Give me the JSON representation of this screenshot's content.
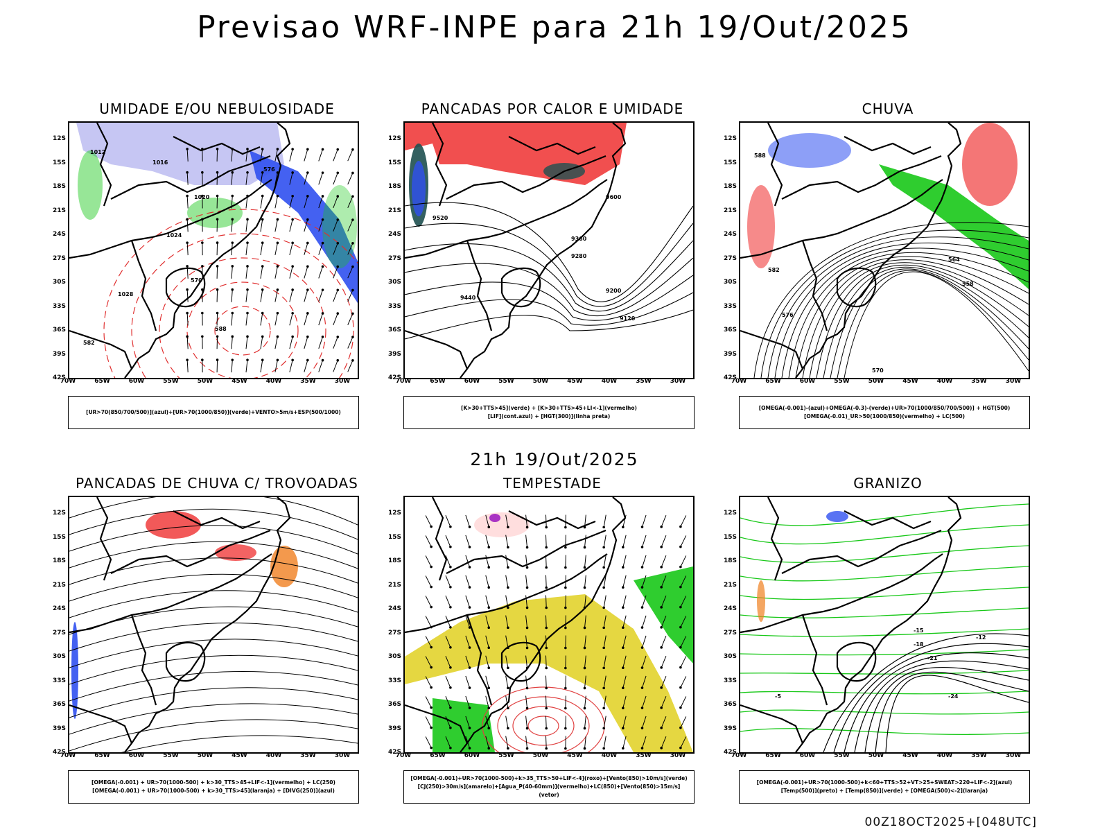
{
  "header": {
    "title": "Previsao WRF-INPE  para 21h 19/Out/2025"
  },
  "middle": {
    "label": "21h 19/Out/2025"
  },
  "footer": {
    "run_info": "00Z18OCT2025+[048UTC]"
  },
  "axes": {
    "lat_labels": [
      "12S",
      "15S",
      "18S",
      "21S",
      "24S",
      "27S",
      "30S",
      "33S",
      "36S",
      "39S",
      "42S"
    ],
    "lon_labels": [
      "70W",
      "65W",
      "60W",
      "55W",
      "50W",
      "45W",
      "40W",
      "35W",
      "30W"
    ]
  },
  "panels": [
    {
      "title": "UMIDADE E/OU NEBULOSIDADE",
      "legend": [
        "[UR>70(850/700/500)](azul)+[UR>70(1000/850)](verde)+VENTO>5m/s+ESP(500/1000)"
      ],
      "contour_labels": [
        "1012",
        "1016",
        "1020",
        "1024",
        "1028",
        "570",
        "576",
        "582",
        "588"
      ]
    },
    {
      "title": "PANCADAS POR CALOR E UMIDADE",
      "legend": [
        "[K>30+TTS>45](verde) + [K>30+TTS>45+LI<-1](vermelho)",
        "[LIF](cont.azul) + [HGT(300)](linha preta)"
      ],
      "contour_labels": [
        "9600",
        "9520",
        "9440",
        "9360",
        "9280",
        "9200",
        "9120"
      ]
    },
    {
      "title": "CHUVA",
      "legend": [
        "[OMEGA(-0.001)-(azul)+OMEGA(-0.3)-(verde)+UR>70(1000/850/700/500)] + HGT(500)",
        "[OMEGA(-0.01)_UR>50(1000/850)(vermelho) + LC(500)"
      ],
      "contour_labels": [
        "588",
        "582",
        "576",
        "570",
        "564",
        "558"
      ]
    },
    {
      "title": "PANCADAS DE CHUVA C/ TROVOADAS",
      "legend": [
        "[OMEGA(-0.001) + UR>70(1000-500) + k>30_TTS>45+LIF<-1](vermelho) + LC(250)",
        "[OMEGA(-0.001) + UR>70(1000-500) + k>30_TTS>45](laranja) + [DIVG(250)](azul)"
      ],
      "contour_labels": []
    },
    {
      "title": "TEMPESTADE",
      "legend": [
        "[OMEGA(-0.001)+UR>70(1000-500)+k>35_TTS>50+LIF<-4](roxo)+[Vento(850)>10m/s](verde)",
        "[CJ(250)>30m/s](amarelo)+[Agua_P(40-60mm)](vermelho)+LC(850)+[Vento(850)>15m/s](vetor)"
      ],
      "contour_labels": []
    },
    {
      "title": "GRANIZO",
      "legend": [
        "[OMEGA(-0.001)+UR>70(1000-500)+k<60+TTS>52+VT>25+SWEAT>220+LIF<-2](azul)",
        "[Temp(500)](preto) + [Temp(850)](verde) + [OMEGA(500)<-2](laranja)"
      ],
      "contour_labels": [
        "-12",
        "-15",
        "-18",
        "-21",
        "-24",
        "-5"
      ]
    }
  ],
  "colors": {
    "blue": "#3050f0",
    "lightblue": "#b8b8f0",
    "green": "#18c818",
    "red": "#f03c3c",
    "darkteal": "#1e5050",
    "yellow": "#e0d020",
    "orange": "#f08020",
    "purple": "#a020c0"
  }
}
